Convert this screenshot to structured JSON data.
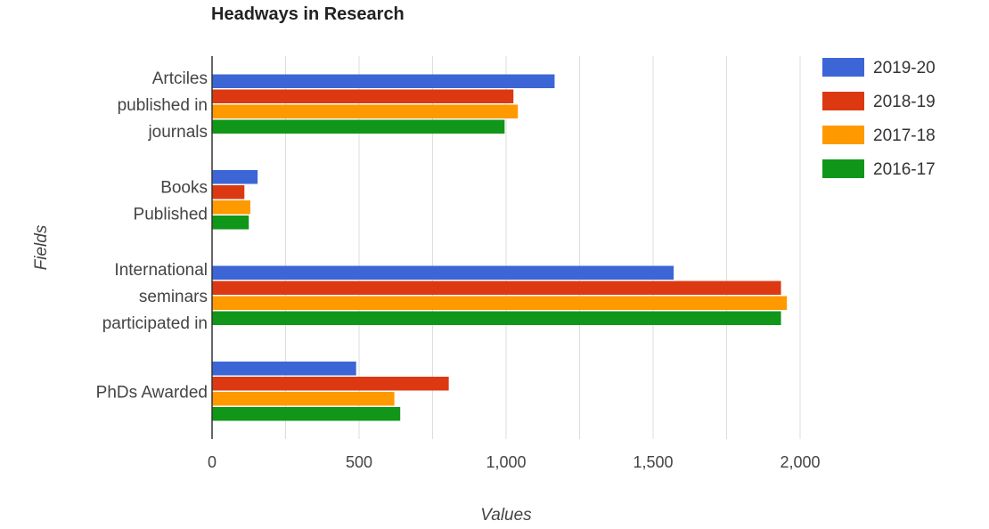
{
  "chart_data": {
    "type": "bar",
    "orientation": "horizontal",
    "title": "Headways in Research",
    "xlabel": "Values",
    "ylabel": "Fields",
    "xlim": [
      0,
      2000
    ],
    "xticks": [
      "0",
      "500",
      "1,000",
      "1,500",
      "2,000"
    ],
    "grid": true,
    "legend_position": "right",
    "categories": [
      [
        "Artciles",
        "published in",
        "journals"
      ],
      [
        "Books",
        "Published"
      ],
      [
        "International",
        "seminars",
        "participated in"
      ],
      [
        "PhDs Awarded"
      ]
    ],
    "series": [
      {
        "name": "2019-20",
        "color": "#3c66d6",
        "values": [
          1165,
          155,
          1570,
          490
        ]
      },
      {
        "name": "2018-19",
        "color": "#dc3912",
        "values": [
          1025,
          110,
          1935,
          805
        ]
      },
      {
        "name": "2017-18",
        "color": "#ff9900",
        "values": [
          1040,
          130,
          1955,
          620
        ]
      },
      {
        "name": "2016-17",
        "color": "#109618",
        "values": [
          995,
          125,
          1935,
          640
        ]
      }
    ]
  }
}
